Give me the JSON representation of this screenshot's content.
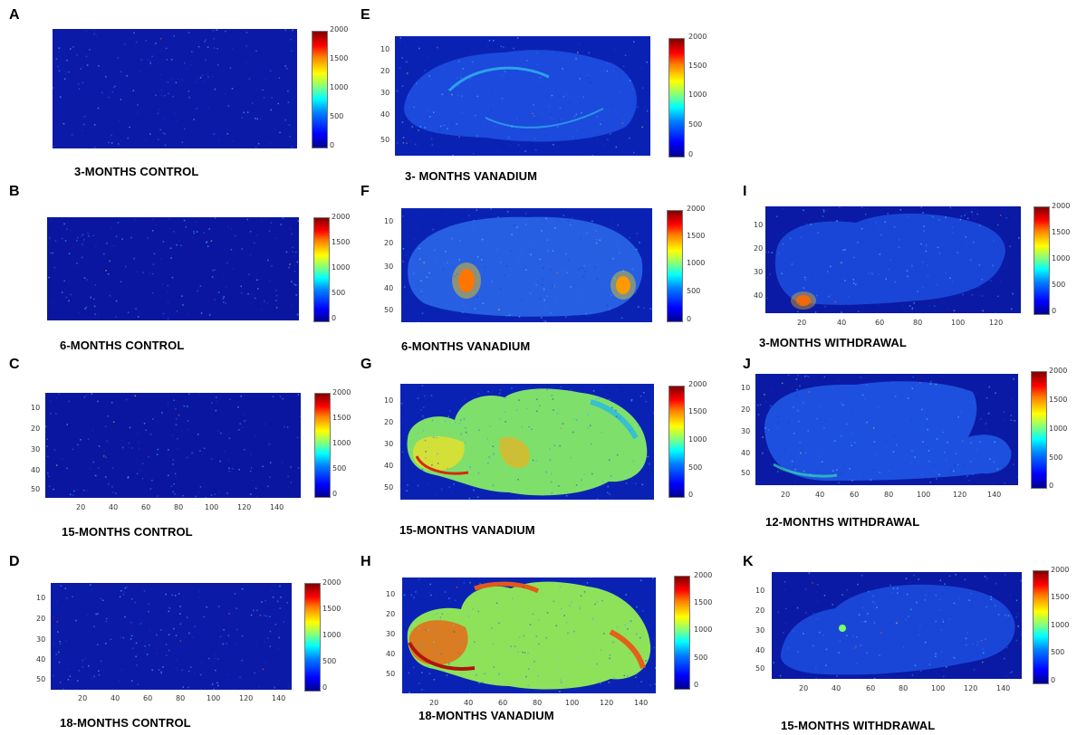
{
  "colorbar": {
    "ticks": [
      "2000",
      "1500",
      "1000",
      "500",
      "0"
    ]
  },
  "yticks_5": [
    "10",
    "20",
    "30",
    "40",
    "50"
  ],
  "yticks_4": [
    "10",
    "20",
    "30",
    "40"
  ],
  "xticks": [
    "20",
    "40",
    "60",
    "80",
    "100",
    "120",
    "140"
  ],
  "xticks_i": [
    "20",
    "40",
    "60",
    "80",
    "100",
    "120"
  ],
  "panels": {
    "A": {
      "letter": "A",
      "caption": "3-MONTHS CONTROL"
    },
    "B": {
      "letter": "B",
      "caption": "6-MONTHS CONTROL"
    },
    "C": {
      "letter": "C",
      "caption": "15-MONTHS CONTROL"
    },
    "D": {
      "letter": "D",
      "caption": "18-MONTHS CONTROL"
    },
    "E": {
      "letter": "E",
      "caption": "3- MONTHS VANADIUM"
    },
    "F": {
      "letter": "F",
      "caption": "6-MONTHS VANADIUM"
    },
    "G": {
      "letter": "G",
      "caption": "15-MONTHS VANADIUM"
    },
    "H": {
      "letter": "H",
      "caption": "18-MONTHS VANADIUM"
    },
    "I": {
      "letter": "I",
      "caption": "3-MONTHS WITHDRAWAL"
    },
    "J": {
      "letter": "J",
      "caption": "12-MONTHS WITHDRAWAL"
    },
    "K": {
      "letter": "K",
      "caption": "15-MONTHS WITHDRAWAL"
    }
  }
}
